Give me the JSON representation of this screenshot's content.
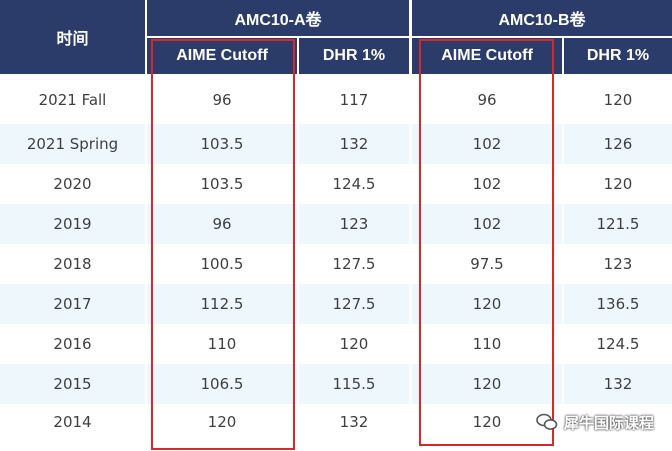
{
  "header": {
    "time": "时间",
    "group_a": "AMC10-A卷",
    "group_b": "AMC10-B卷",
    "a_cutoff": "AIME Cutoff",
    "a_dhr": "DHR 1%",
    "b_cutoff": "AIME Cutoff",
    "b_dhr": "DHR 1%"
  },
  "rows": [
    {
      "year": "2021 Fall",
      "a_cutoff": "96",
      "a_dhr": "117",
      "b_cutoff": "96",
      "b_dhr": "120"
    },
    {
      "year": "2021 Spring",
      "a_cutoff": "103.5",
      "a_dhr": "132",
      "b_cutoff": "102",
      "b_dhr": "126"
    },
    {
      "year": "2020",
      "a_cutoff": "103.5",
      "a_dhr": "124.5",
      "b_cutoff": "102",
      "b_dhr": "120"
    },
    {
      "year": "2019",
      "a_cutoff": "96",
      "a_dhr": "123",
      "b_cutoff": "102",
      "b_dhr": "121.5"
    },
    {
      "year": "2018",
      "a_cutoff": "100.5",
      "a_dhr": "127.5",
      "b_cutoff": "97.5",
      "b_dhr": "123"
    },
    {
      "year": "2017",
      "a_cutoff": "112.5",
      "a_dhr": "127.5",
      "b_cutoff": "120",
      "b_dhr": "136.5"
    },
    {
      "year": "2016",
      "a_cutoff": "110",
      "a_dhr": "120",
      "b_cutoff": "110",
      "b_dhr": "124.5"
    },
    {
      "year": "2015",
      "a_cutoff": "106.5",
      "a_dhr": "115.5",
      "b_cutoff": "120",
      "b_dhr": "132"
    },
    {
      "year": "2014",
      "a_cutoff": "120",
      "a_dhr": "132",
      "b_cutoff": "120",
      "b_dhr": ""
    }
  ],
  "watermark": {
    "text": "犀牛国际课程",
    "icon": "wechat-icon"
  },
  "colors": {
    "header_bg": "#2b3c6b",
    "stripe": "#eef8fc",
    "highlight": "#d9272e",
    "text": "#3f3f3f"
  }
}
